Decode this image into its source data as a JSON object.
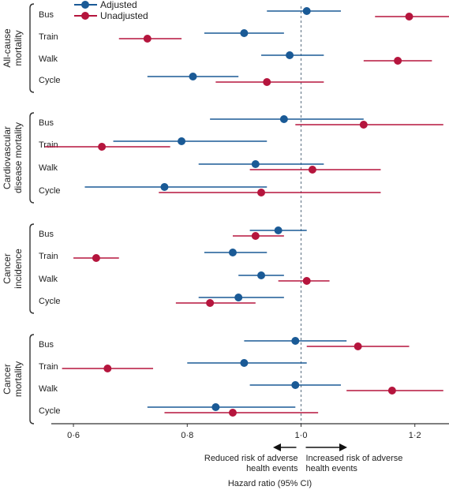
{
  "chart_data": {
    "type": "scatter",
    "subtype": "forest-plot",
    "xlabel": "Hazard ratio (95% CI)",
    "xlim": [
      0.55,
      1.26
    ],
    "x_ticks": [
      {
        "value": 0.6,
        "label": "0·6"
      },
      {
        "value": 0.8,
        "label": "0·8"
      },
      {
        "value": 1.0,
        "label": "1·0"
      },
      {
        "value": 1.2,
        "label": "1·2"
      }
    ],
    "reference_line": 1.0,
    "legend_position": "top-left",
    "legend": [
      {
        "key": "adjusted",
        "label": "Adjusted",
        "color": "#1a5a96"
      },
      {
        "key": "unadjusted",
        "label": "Unadjusted",
        "color": "#b5153d"
      }
    ],
    "annotations": {
      "left": [
        "Reduced risk of adverse",
        "health events"
      ],
      "right": [
        "Increased risk of adverse",
        "health events"
      ]
    },
    "groups": [
      {
        "label_lines": [
          "All-cause",
          "mortality"
        ],
        "rows": [
          {
            "label": "Bus",
            "adjusted": {
              "est": 1.01,
              "lo": 0.94,
              "hi": 1.07
            },
            "unadjusted": {
              "est": 1.19,
              "lo": 1.13,
              "hi": 1.26
            }
          },
          {
            "label": "Train",
            "adjusted": {
              "est": 0.9,
              "lo": 0.83,
              "hi": 0.97
            },
            "unadjusted": {
              "est": 0.73,
              "lo": 0.68,
              "hi": 0.79
            }
          },
          {
            "label": "Walk",
            "adjusted": {
              "est": 0.98,
              "lo": 0.93,
              "hi": 1.04
            },
            "unadjusted": {
              "est": 1.17,
              "lo": 1.11,
              "hi": 1.23
            }
          },
          {
            "label": "Cycle",
            "adjusted": {
              "est": 0.81,
              "lo": 0.73,
              "hi": 0.89
            },
            "unadjusted": {
              "est": 0.94,
              "lo": 0.85,
              "hi": 1.04
            }
          }
        ]
      },
      {
        "label_lines": [
          "Cardiovascular",
          "disease mortality"
        ],
        "rows": [
          {
            "label": "Bus",
            "adjusted": {
              "est": 0.97,
              "lo": 0.84,
              "hi": 1.11
            },
            "unadjusted": {
              "est": 1.11,
              "lo": 0.99,
              "hi": 1.25
            }
          },
          {
            "label": "Train",
            "adjusted": {
              "est": 0.79,
              "lo": 0.67,
              "hi": 0.94
            },
            "unadjusted": {
              "est": 0.65,
              "lo": 0.55,
              "hi": 0.77
            }
          },
          {
            "label": "Walk",
            "adjusted": {
              "est": 0.92,
              "lo": 0.82,
              "hi": 1.04
            },
            "unadjusted": {
              "est": 1.02,
              "lo": 0.91,
              "hi": 1.14
            }
          },
          {
            "label": "Cycle",
            "adjusted": {
              "est": 0.76,
              "lo": 0.62,
              "hi": 0.94
            },
            "unadjusted": {
              "est": 0.93,
              "lo": 0.75,
              "hi": 1.14
            }
          }
        ]
      },
      {
        "label_lines": [
          "Cancer",
          "incidence"
        ],
        "rows": [
          {
            "label": "Bus",
            "adjusted": {
              "est": 0.96,
              "lo": 0.91,
              "hi": 1.01
            },
            "unadjusted": {
              "est": 0.92,
              "lo": 0.88,
              "hi": 0.97
            }
          },
          {
            "label": "Train",
            "adjusted": {
              "est": 0.88,
              "lo": 0.83,
              "hi": 0.94
            },
            "unadjusted": {
              "est": 0.64,
              "lo": 0.6,
              "hi": 0.68
            }
          },
          {
            "label": "Walk",
            "adjusted": {
              "est": 0.93,
              "lo": 0.89,
              "hi": 0.97
            },
            "unadjusted": {
              "est": 1.01,
              "lo": 0.96,
              "hi": 1.05
            }
          },
          {
            "label": "Cycle",
            "adjusted": {
              "est": 0.89,
              "lo": 0.82,
              "hi": 0.97
            },
            "unadjusted": {
              "est": 0.84,
              "lo": 0.78,
              "hi": 0.92
            }
          }
        ]
      },
      {
        "label_lines": [
          "Cancer",
          "mortality"
        ],
        "rows": [
          {
            "label": "Bus",
            "adjusted": {
              "est": 0.99,
              "lo": 0.9,
              "hi": 1.08
            },
            "unadjusted": {
              "est": 1.1,
              "lo": 1.01,
              "hi": 1.19
            }
          },
          {
            "label": "Train",
            "adjusted": {
              "est": 0.9,
              "lo": 0.8,
              "hi": 1.01
            },
            "unadjusted": {
              "est": 0.66,
              "lo": 0.58,
              "hi": 0.74
            }
          },
          {
            "label": "Walk",
            "adjusted": {
              "est": 0.99,
              "lo": 0.91,
              "hi": 1.07
            },
            "unadjusted": {
              "est": 1.16,
              "lo": 1.08,
              "hi": 1.25
            }
          },
          {
            "label": "Cycle",
            "adjusted": {
              "est": 0.85,
              "lo": 0.73,
              "hi": 0.99
            },
            "unadjusted": {
              "est": 0.88,
              "lo": 0.76,
              "hi": 1.03
            }
          }
        ]
      }
    ]
  }
}
